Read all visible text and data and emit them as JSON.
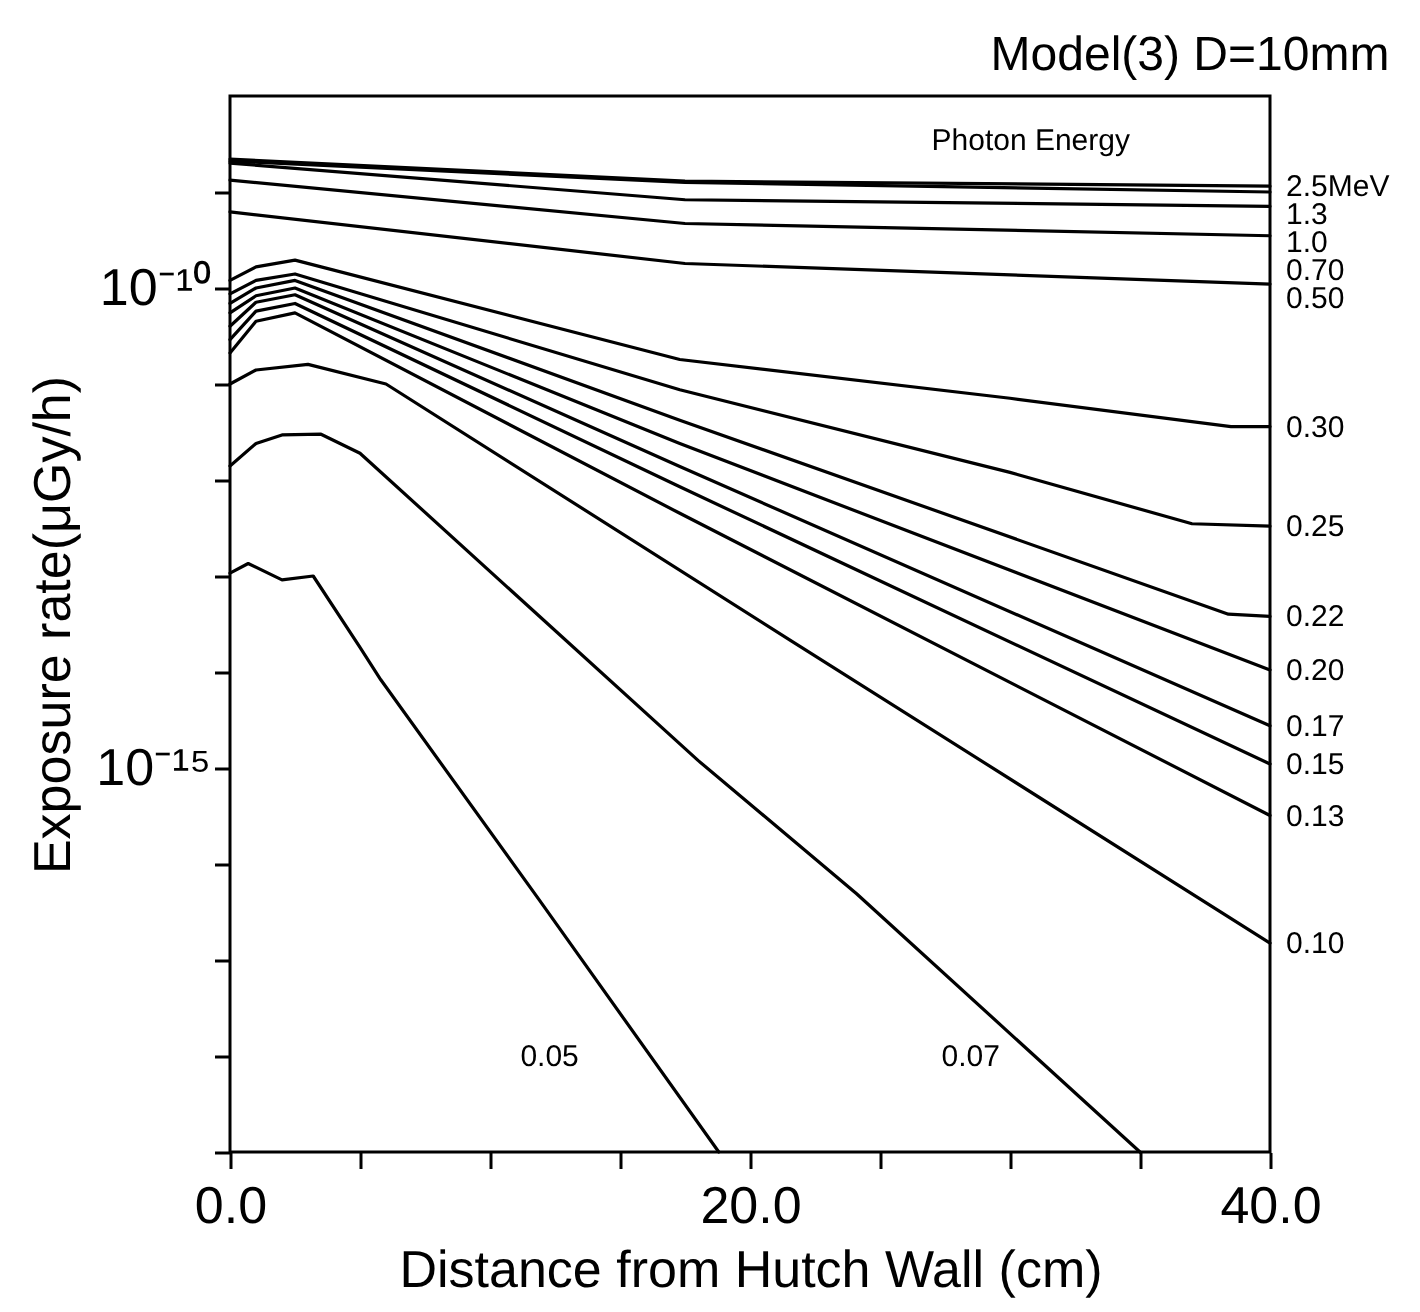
{
  "chart_data": {
    "type": "line",
    "title": "Model(3) D=10mm",
    "xlabel": "Distance from Hutch Wall (cm)",
    "ylabel": "Exposure rate(μGy/h)",
    "annotations": [
      "Photon Energy"
    ],
    "log": "y",
    "grid": false,
    "legend": false,
    "marker": "none",
    "line_style": "solid",
    "xlim": [
      0,
      40
    ],
    "xticks": [
      {
        "value": 0,
        "label": "0.0"
      },
      {
        "value": 5,
        "label": null
      },
      {
        "value": 10,
        "label": null
      },
      {
        "value": 15,
        "label": null
      },
      {
        "value": 20,
        "label": "20.0"
      },
      {
        "value": 25,
        "label": null
      },
      {
        "value": 30,
        "label": null
      },
      {
        "value": 35,
        "label": null
      },
      {
        "value": 40,
        "label": "40.0"
      }
    ],
    "ylim": [
      1e-19,
      1e-08
    ],
    "yticks": [
      {
        "value": 1e-19,
        "label": null
      },
      {
        "value": 1e-18,
        "label": null
      },
      {
        "value": 1e-17,
        "label": null
      },
      {
        "value": 1e-16,
        "label": null
      },
      {
        "value": 1e-15,
        "label": "10⁻¹⁵"
      },
      {
        "value": 1e-14,
        "label": null
      },
      {
        "value": 1e-13,
        "label": null
      },
      {
        "value": 1e-12,
        "label": null
      },
      {
        "value": 1e-11,
        "label": null
      },
      {
        "value": 1e-10,
        "label": "10⁻¹⁰"
      },
      {
        "value": 1e-09,
        "label": null
      }
    ],
    "series": [
      {
        "name": "2.5MeV",
        "color": "#000000",
        "x": [
          0,
          17.5,
          40
        ],
        "values": [
          2.2e-09,
          1.3e-09,
          1.15e-09
        ]
      },
      {
        "name": "1.3",
        "color": "#000000",
        "x": [
          0,
          17.5,
          40
        ],
        "values": [
          2.1e-09,
          1.26e-09,
          1e-09
        ]
      },
      {
        "name": "1.0",
        "color": "#000000",
        "x": [
          0,
          17.5,
          40
        ],
        "values": [
          2e-09,
          8.3e-10,
          7.1e-10
        ]
      },
      {
        "name": "0.70",
        "color": "#000000",
        "x": [
          0,
          17.5,
          40
        ],
        "values": [
          1.33e-09,
          4.7e-10,
          3.5e-10
        ]
      },
      {
        "name": "0.50",
        "color": "#000000",
        "x": [
          0,
          17.5,
          40
        ],
        "values": [
          6.2e-10,
          1.8e-10,
          1.1e-10
        ]
      },
      {
        "name": "0.30",
        "color": "#000000",
        "x": [
          0,
          1,
          2.5,
          17.3,
          30,
          38.5,
          40
        ],
        "values": [
          1.2e-10,
          1.66e-10,
          1.95e-10,
          1.8e-11,
          7.1e-12,
          3.6e-12,
          3.6e-12
        ]
      },
      {
        "name": "0.25",
        "color": "#000000",
        "x": [
          0,
          1,
          2.5,
          17.3,
          30,
          37,
          40
        ],
        "values": [
          8.7e-11,
          1.2e-10,
          1.4e-10,
          8.7e-12,
          1.2e-12,
          3.5e-13,
          3.3e-13
        ]
      },
      {
        "name": "0.22",
        "color": "#000000",
        "x": [
          0,
          1,
          2.5,
          17.3,
          38.4,
          40
        ],
        "values": [
          6.9e-11,
          1e-10,
          1.2e-10,
          4.2e-12,
          4e-14,
          3.8e-14
        ]
      },
      {
        "name": "0.20",
        "color": "#000000",
        "x": [
          0,
          1,
          2.5,
          17.3,
          40
        ],
        "values": [
          5.5e-11,
          8.3e-11,
          1e-10,
          2.4e-12,
          1.05e-14
        ]
      },
      {
        "name": "0.17",
        "color": "#000000",
        "x": [
          0,
          1,
          2.5,
          17.3,
          40
        ],
        "values": [
          4e-11,
          7.1e-11,
          8.5e-11,
          1.38e-12,
          2.75e-15
        ]
      },
      {
        "name": "0.15",
        "color": "#000000",
        "x": [
          0,
          1,
          2.5,
          17.3,
          40
        ],
        "values": [
          2.9e-11,
          5.75e-11,
          6.9e-11,
          8.5e-13,
          1.1e-15
        ]
      },
      {
        "name": "0.13",
        "color": "#000000",
        "x": [
          0,
          1,
          2.5,
          17.3,
          40
        ],
        "values": [
          2.1e-11,
          4.5e-11,
          5.5e-11,
          4.5e-13,
          3.2e-16
        ]
      },
      {
        "name": "0.10",
        "color": "#000000",
        "x": [
          0,
          1,
          3,
          6,
          21.6,
          40
        ],
        "values": [
          1e-11,
          1.4e-11,
          1.6e-11,
          1e-11,
          2.1e-14,
          1.5e-17
        ]
      },
      {
        "name": "0.07",
        "color": "#000000",
        "x": [
          0,
          1,
          2,
          3.5,
          5,
          18,
          24.1,
          35
        ],
        "values": [
          1.4e-12,
          2.4e-12,
          2.95e-12,
          3e-12,
          1.9e-12,
          1.2e-15,
          4.9e-17,
          1e-19
        ]
      },
      {
        "name": "0.05",
        "color": "#000000",
        "x": [
          0,
          0.7,
          2,
          3.2,
          5,
          5.8,
          11.9,
          18.8
        ],
        "values": [
          1.07e-13,
          1.35e-13,
          9.1e-14,
          1e-13,
          1.8e-14,
          8.3e-15,
          4.2e-17,
          1e-19
        ]
      }
    ]
  }
}
